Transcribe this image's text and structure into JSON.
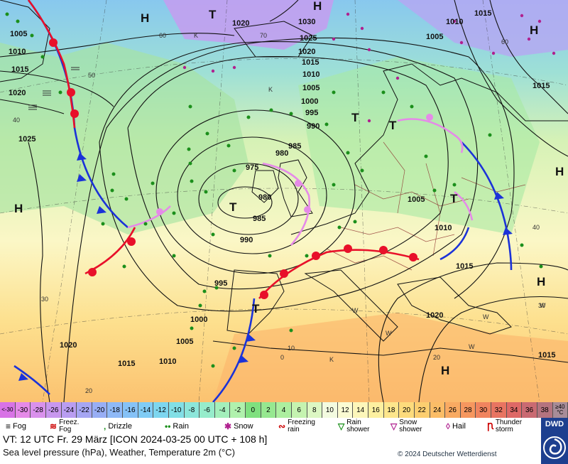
{
  "pressure_labels": [
    {
      "text": "1005"
    },
    {
      "text": "1010"
    },
    {
      "text": "1015"
    },
    {
      "text": "1020"
    },
    {
      "text": "1025"
    },
    {
      "text": "1020"
    },
    {
      "text": "1030"
    },
    {
      "text": "1025"
    },
    {
      "text": "1020"
    },
    {
      "text": "1015"
    },
    {
      "text": "1010"
    },
    {
      "text": "1005"
    },
    {
      "text": "1000"
    },
    {
      "text": "995"
    },
    {
      "text": "990"
    },
    {
      "text": "985"
    },
    {
      "text": "980"
    },
    {
      "text": "975"
    },
    {
      "text": "980"
    },
    {
      "text": "985"
    },
    {
      "text": "990"
    },
    {
      "text": "995"
    },
    {
      "text": "1000"
    },
    {
      "text": "1005"
    },
    {
      "text": "1010"
    },
    {
      "text": "1015"
    },
    {
      "text": "1020"
    },
    {
      "text": "1005"
    },
    {
      "text": "1010"
    },
    {
      "text": "1015"
    },
    {
      "text": "1020"
    },
    {
      "text": "1015"
    },
    {
      "text": "1015"
    },
    {
      "text": "1010"
    },
    {
      "text": "1015"
    },
    {
      "text": "1005"
    }
  ],
  "pressure_centers": [
    {
      "text": "H"
    },
    {
      "text": "T"
    },
    {
      "text": "H"
    },
    {
      "text": "H"
    },
    {
      "text": "T"
    },
    {
      "text": "T"
    },
    {
      "text": "T"
    },
    {
      "text": "T"
    },
    {
      "text": "T"
    },
    {
      "text": "H"
    },
    {
      "text": "H"
    },
    {
      "text": "H"
    },
    {
      "text": "H"
    }
  ],
  "temp_labels": [
    {
      "text": "60"
    },
    {
      "text": "70"
    },
    {
      "text": "60"
    },
    {
      "text": "50"
    },
    {
      "text": "40"
    },
    {
      "text": "30"
    },
    {
      "text": "20"
    },
    {
      "text": "40"
    },
    {
      "text": "30"
    },
    {
      "text": "20"
    },
    {
      "text": "10"
    },
    {
      "text": "0"
    },
    {
      "text": "K"
    },
    {
      "text": "K"
    },
    {
      "text": "K"
    },
    {
      "text": "W"
    },
    {
      "text": "W"
    },
    {
      "text": "W"
    },
    {
      "text": "W"
    },
    {
      "text": "W"
    }
  ],
  "scale": {
    "cells": [
      {
        "label": "<-30",
        "color": "#d873e6"
      },
      {
        "label": "-30",
        "color": "#e58ae8"
      },
      {
        "label": "-28",
        "color": "#d991ec"
      },
      {
        "label": "-26",
        "color": "#c897ee"
      },
      {
        "label": "-24",
        "color": "#b99df1"
      },
      {
        "label": "-22",
        "color": "#a6a6f3"
      },
      {
        "label": "-20",
        "color": "#98aef5"
      },
      {
        "label": "-18",
        "color": "#8fb9f7"
      },
      {
        "label": "-16",
        "color": "#86c2f7"
      },
      {
        "label": "-14",
        "color": "#80ccf5"
      },
      {
        "label": "-12",
        "color": "#7dd6ef"
      },
      {
        "label": "-10",
        "color": "#82dfe6"
      },
      {
        "label": "-8",
        "color": "#8ce6da"
      },
      {
        "label": "-6",
        "color": "#96eccb"
      },
      {
        "label": "-4",
        "color": "#a3efbb"
      },
      {
        "label": "-2",
        "color": "#b0f1ad"
      },
      {
        "label": "0",
        "color": "#7fe07f"
      },
      {
        "label": "2",
        "color": "#96e890"
      },
      {
        "label": "4",
        "color": "#acef9f"
      },
      {
        "label": "6",
        "color": "#c5f3b0"
      },
      {
        "label": "8",
        "color": "#dcf7c3"
      },
      {
        "label": "10",
        "color": "#f3fbe0"
      },
      {
        "label": "12",
        "color": "#fbfbd2"
      },
      {
        "label": "14",
        "color": "#fcf6ba"
      },
      {
        "label": "16",
        "color": "#fdf0a0"
      },
      {
        "label": "18",
        "color": "#fde68c"
      },
      {
        "label": "20",
        "color": "#fddb7c"
      },
      {
        "label": "22",
        "color": "#fcce70"
      },
      {
        "label": "24",
        "color": "#fbbd67"
      },
      {
        "label": "26",
        "color": "#f9aa62"
      },
      {
        "label": "28",
        "color": "#f6975f"
      },
      {
        "label": "30",
        "color": "#f0845f"
      },
      {
        "label": "32",
        "color": "#e87461"
      },
      {
        "label": "34",
        "color": "#de6866"
      },
      {
        "label": "36",
        "color": "#c96a72"
      },
      {
        "label": "38",
        "color": "#b4737f"
      },
      {
        "label": "≥40 °C",
        "color": "#a78c98"
      }
    ]
  },
  "legend": {
    "fog": "Fog",
    "freezing_fog": "Freez. Fog",
    "drizzle": "Drizzle",
    "rain": "Rain",
    "snow": "Snow",
    "freezing_rain": "Freezing rain",
    "rain_shower": "Rain shower",
    "snow_shower": "Snow shower",
    "hail": "Hail",
    "thunderstorm": "Thunder storm"
  },
  "info": {
    "valid_time": "VT: 12 UTC Fr.  29 März [ICON 2024-03-25  00 UTC + 108 h]",
    "description": "Sea level pressure (hPa), Weather, Temperature 2m (°C)",
    "copyright": "© 2024 Deutscher Wetterdienst",
    "logo": "DWD"
  },
  "colors": {
    "cold_front": "#1b32d8",
    "warm_front": "#e8102a",
    "occlusion": "#e58ae8",
    "isobar": "#111111",
    "coast": "#111111",
    "border": "#8b2a2a"
  }
}
